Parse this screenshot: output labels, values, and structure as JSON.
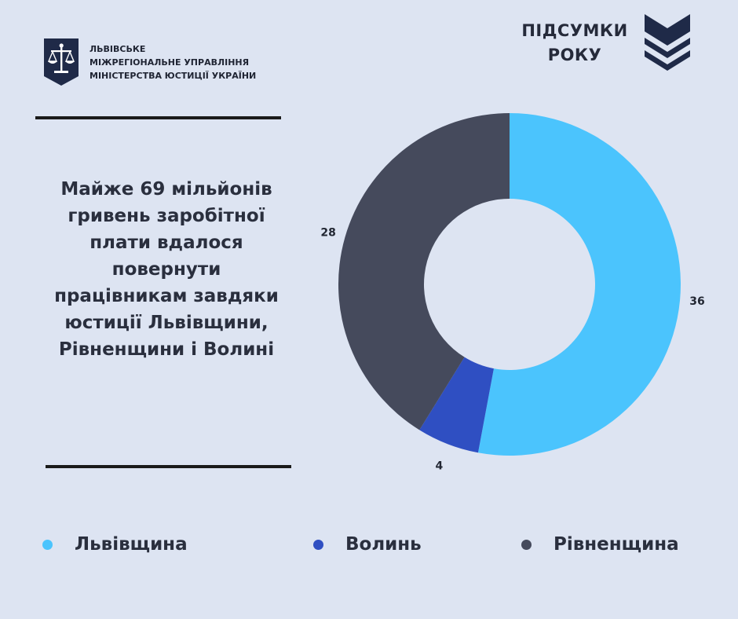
{
  "header": {
    "org_lines": [
      "ЛЬВІВСЬКЕ",
      "МІЖРЕГІОНАЛЬНЕ УПРАВЛІННЯ",
      "МІНІСТЕРСТВА ЮСТИЦІЇ УКРАЇНИ"
    ],
    "badge_lines": [
      "ПІДСУМКИ",
      "РОКУ"
    ]
  },
  "headline_lines": [
    "Майже 69 мільйонів",
    "гривень заробітної",
    "плати вдалося",
    "повернути",
    "працівникам завдяки",
    "юстиції Львівщини,",
    "Рівненщини і Волині"
  ],
  "colors": {
    "background": "#dde4f2",
    "lviv": "#4bc4fd",
    "volyn": "#2f4fc2",
    "rivne": "#454a5c",
    "navy": "#1f2a48"
  },
  "chart_data": {
    "type": "pie",
    "style": "donut",
    "categories": [
      "Львівщина",
      "Волинь",
      "Рівненщина"
    ],
    "values": [
      36,
      4,
      28
    ],
    "colors": [
      "#4bc4fd",
      "#2f4fc2",
      "#454a5c"
    ],
    "labels": [
      "36",
      "4",
      "28"
    ],
    "legend_position": "bottom"
  }
}
